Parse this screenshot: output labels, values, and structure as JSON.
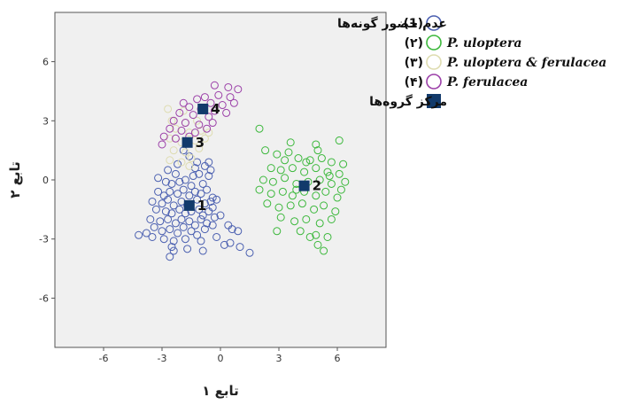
{
  "chart_data": {
    "type": "scatter",
    "title": "",
    "xlabel": "تابع ۱",
    "ylabel": "تابع ۲",
    "xlim": [
      -8.5,
      8.5
    ],
    "ylim": [
      -8.5,
      8.5
    ],
    "x_ticks": [
      {
        "value": -6,
        "label": "-6"
      },
      {
        "value": -3,
        "label": "-3"
      },
      {
        "value": 0,
        "label": "0"
      },
      {
        "value": 3,
        "label": "3"
      },
      {
        "value": 6,
        "label": "6"
      }
    ],
    "y_ticks": [
      {
        "value": 6,
        "label": "6"
      },
      {
        "value": 3,
        "label": "3"
      },
      {
        "value": 0,
        "label": "0"
      },
      {
        "value": -3,
        "label": "-3"
      },
      {
        "value": -6,
        "label": "-6"
      }
    ],
    "grid": false,
    "background": "#f0f0f0",
    "legend_position": "right",
    "legend": [
      {
        "marker": "(1)",
        "label": "عدم حضور گونه‌ها",
        "color": "#4a5fb0",
        "symbol": "circle"
      },
      {
        "marker": "(۲)",
        "label": "P. uloptera",
        "color": "#3cb83c",
        "symbol": "circle"
      },
      {
        "marker": "(۳)",
        "label": "P. uloptera & ferulacea",
        "color": "#dedcb0",
        "symbol": "circle"
      },
      {
        "marker": "(۴)",
        "label": "P. ferulacea",
        "color": "#9b3fa8",
        "symbol": "circle"
      },
      {
        "marker": "",
        "label": "مرکز گروه‌ها",
        "color": "#123a6b",
        "symbol": "square"
      }
    ],
    "series": [
      {
        "name": "عدم حضور گونه‌ها",
        "color": "#4a5fb0",
        "points": [
          [
            -2.8,
            -0.1
          ],
          [
            -2.5,
            -0.2
          ],
          [
            -2.1,
            -0.1
          ],
          [
            -1.8,
            0.0
          ],
          [
            -1.5,
            -0.3
          ],
          [
            -1.1,
            0.3
          ],
          [
            -0.9,
            -0.2
          ],
          [
            -0.6,
            0.2
          ],
          [
            -2.3,
            0.3
          ],
          [
            -1.3,
            0.6
          ],
          [
            -3.2,
            -0.6
          ],
          [
            -2.9,
            -0.8
          ],
          [
            -2.6,
            -0.6
          ],
          [
            -2.2,
            -0.7
          ],
          [
            -1.9,
            -0.5
          ],
          [
            -1.6,
            -0.8
          ],
          [
            -1.3,
            -0.6
          ],
          [
            -1.0,
            -0.7
          ],
          [
            -0.7,
            -0.5
          ],
          [
            -0.4,
            -0.9
          ],
          [
            -3.5,
            -1.1
          ],
          [
            -3.0,
            -1.2
          ],
          [
            -2.7,
            -1.0
          ],
          [
            -2.4,
            -1.3
          ],
          [
            -2.0,
            -1.1
          ],
          [
            -1.7,
            -1.3
          ],
          [
            -1.2,
            -1.0
          ],
          [
            -0.8,
            -1.2
          ],
          [
            -0.5,
            -1.1
          ],
          [
            -0.2,
            -1.0
          ],
          [
            -3.3,
            -1.5
          ],
          [
            -2.8,
            -1.6
          ],
          [
            -2.5,
            -1.7
          ],
          [
            -2.1,
            -1.5
          ],
          [
            -1.8,
            -1.7
          ],
          [
            -1.5,
            -1.6
          ],
          [
            -1.1,
            -1.5
          ],
          [
            -0.9,
            -1.8
          ],
          [
            -0.6,
            -1.6
          ],
          [
            -0.3,
            -1.9
          ],
          [
            -3.6,
            -2.0
          ],
          [
            -3.1,
            -2.1
          ],
          [
            -2.7,
            -2.0
          ],
          [
            -2.3,
            -2.2
          ],
          [
            -2.0,
            -2.0
          ],
          [
            -1.6,
            -2.1
          ],
          [
            -1.3,
            -2.3
          ],
          [
            -1.0,
            -2.0
          ],
          [
            -0.7,
            -2.2
          ],
          [
            0.0,
            -1.8
          ],
          [
            -3.4,
            -2.4
          ],
          [
            -3.0,
            -2.6
          ],
          [
            -2.6,
            -2.5
          ],
          [
            -2.2,
            -2.7
          ],
          [
            -1.9,
            -2.4
          ],
          [
            -1.5,
            -2.6
          ],
          [
            -1.2,
            -2.8
          ],
          [
            -0.8,
            -2.5
          ],
          [
            -0.4,
            -2.3
          ],
          [
            0.4,
            -2.3
          ],
          [
            -4.2,
            -2.8
          ],
          [
            -3.8,
            -2.7
          ],
          [
            -3.5,
            -2.9
          ],
          [
            -2.9,
            -3.0
          ],
          [
            -2.4,
            -3.1
          ],
          [
            -1.8,
            -3.0
          ],
          [
            -1.0,
            -3.1
          ],
          [
            -0.2,
            -2.9
          ],
          [
            0.6,
            -2.5
          ],
          [
            0.9,
            -2.6
          ],
          [
            -2.5,
            -3.4
          ],
          [
            -1.7,
            -3.5
          ],
          [
            -0.9,
            -3.6
          ],
          [
            0.2,
            -3.3
          ],
          [
            0.5,
            -3.2
          ],
          [
            1.0,
            -3.4
          ],
          [
            1.5,
            -3.7
          ],
          [
            -2.6,
            -3.9
          ],
          [
            -2.4,
            -3.6
          ],
          [
            -0.4,
            -1.4
          ],
          [
            -2.2,
            0.8
          ],
          [
            -1.6,
            1.2
          ],
          [
            -1.2,
            0.9
          ],
          [
            -0.8,
            0.7
          ],
          [
            -0.5,
            0.5
          ],
          [
            -2.7,
            0.5
          ],
          [
            -3.2,
            0.1
          ],
          [
            -1.9,
            1.5
          ],
          [
            -0.6,
            0.9
          ],
          [
            -1.4,
            0.2
          ]
        ]
      },
      {
        "name": "P. uloptera",
        "color": "#3cb83c",
        "points": [
          [
            2.0,
            2.6
          ],
          [
            3.6,
            1.9
          ],
          [
            4.9,
            1.8
          ],
          [
            6.1,
            2.0
          ],
          [
            2.3,
            1.5
          ],
          [
            2.9,
            1.3
          ],
          [
            3.3,
            1.0
          ],
          [
            4.0,
            1.1
          ],
          [
            4.6,
            1.0
          ],
          [
            5.2,
            1.1
          ],
          [
            5.7,
            0.9
          ],
          [
            2.6,
            0.6
          ],
          [
            3.1,
            0.5
          ],
          [
            3.7,
            0.6
          ],
          [
            4.3,
            0.4
          ],
          [
            4.9,
            0.6
          ],
          [
            5.5,
            0.4
          ],
          [
            6.1,
            0.3
          ],
          [
            6.4,
            -0.1
          ],
          [
            2.2,
            0.0
          ],
          [
            2.7,
            -0.1
          ],
          [
            3.3,
            0.1
          ],
          [
            3.9,
            -0.2
          ],
          [
            4.5,
            -0.1
          ],
          [
            5.1,
            0.0
          ],
          [
            5.7,
            -0.2
          ],
          [
            6.2,
            -0.5
          ],
          [
            2.0,
            -0.5
          ],
          [
            2.6,
            -0.7
          ],
          [
            3.2,
            -0.6
          ],
          [
            3.7,
            -0.8
          ],
          [
            4.3,
            -0.6
          ],
          [
            4.9,
            -0.8
          ],
          [
            5.4,
            -0.6
          ],
          [
            6.0,
            -0.9
          ],
          [
            2.4,
            -1.2
          ],
          [
            3.0,
            -1.4
          ],
          [
            3.6,
            -1.3
          ],
          [
            4.2,
            -1.2
          ],
          [
            4.8,
            -1.5
          ],
          [
            5.3,
            -1.3
          ],
          [
            5.9,
            -1.6
          ],
          [
            3.1,
            -1.9
          ],
          [
            3.8,
            -2.1
          ],
          [
            4.4,
            -2.0
          ],
          [
            5.1,
            -2.2
          ],
          [
            5.7,
            -2.0
          ],
          [
            4.1,
            -2.6
          ],
          [
            4.9,
            -2.8
          ],
          [
            5.5,
            -2.9
          ],
          [
            5.0,
            -3.3
          ],
          [
            5.3,
            -3.6
          ],
          [
            2.9,
            -2.6
          ],
          [
            6.3,
            0.8
          ],
          [
            4.4,
            0.9
          ],
          [
            3.5,
            1.4
          ],
          [
            4.6,
            -2.9
          ],
          [
            5.6,
            0.2
          ],
          [
            3.9,
            -0.5
          ],
          [
            5.0,
            1.5
          ]
        ]
      },
      {
        "name": "P. uloptera & ferulacea",
        "color": "#dedcb0",
        "points": [
          [
            -2.7,
            3.6
          ],
          [
            -1.9,
            3.5
          ],
          [
            -2.5,
            3.0
          ],
          [
            -1.8,
            2.9
          ],
          [
            -1.2,
            3.0
          ],
          [
            -2.3,
            2.6
          ],
          [
            -1.6,
            2.4
          ],
          [
            -1.0,
            2.5
          ],
          [
            -2.6,
            2.1
          ],
          [
            -2.0,
            1.9
          ],
          [
            -1.3,
            2.0
          ],
          [
            -0.8,
            2.1
          ],
          [
            -2.4,
            1.5
          ],
          [
            -1.8,
            1.4
          ],
          [
            -1.1,
            1.6
          ],
          [
            -2.6,
            1.0
          ],
          [
            -2.0,
            0.9
          ],
          [
            -1.5,
            1.1
          ],
          [
            -0.6,
            2.4
          ],
          [
            -1.6,
            0.7
          ]
        ]
      },
      {
        "name": "P. ferulacea",
        "color": "#9b3fa8",
        "points": [
          [
            -0.3,
            4.8
          ],
          [
            0.4,
            4.7
          ],
          [
            -0.1,
            4.3
          ],
          [
            0.5,
            4.2
          ],
          [
            -0.8,
            4.2
          ],
          [
            -1.2,
            4.1
          ],
          [
            -0.5,
            3.9
          ],
          [
            0.1,
            3.8
          ],
          [
            0.7,
            3.9
          ],
          [
            -1.6,
            3.7
          ],
          [
            -1.0,
            3.6
          ],
          [
            -0.3,
            3.5
          ],
          [
            0.3,
            3.4
          ],
          [
            -2.1,
            3.4
          ],
          [
            -1.4,
            3.3
          ],
          [
            -0.6,
            3.2
          ],
          [
            -2.4,
            3.0
          ],
          [
            -1.8,
            2.9
          ],
          [
            -1.1,
            2.8
          ],
          [
            -0.4,
            2.9
          ],
          [
            -2.6,
            2.6
          ],
          [
            -2.0,
            2.5
          ],
          [
            -1.3,
            2.4
          ],
          [
            -0.7,
            2.6
          ],
          [
            -2.9,
            2.2
          ],
          [
            -2.3,
            2.1
          ],
          [
            -1.6,
            2.2
          ],
          [
            -3.0,
            1.8
          ],
          [
            0.9,
            4.6
          ],
          [
            -1.9,
            3.9
          ]
        ]
      }
    ],
    "centroids": [
      {
        "label": "1",
        "x": -1.6,
        "y": -1.3,
        "color": "#123a6b"
      },
      {
        "label": "2",
        "x": 4.3,
        "y": -0.3,
        "color": "#123a6b"
      },
      {
        "label": "3",
        "x": -1.7,
        "y": 1.9,
        "color": "#123a6b"
      },
      {
        "label": "4",
        "x": -0.9,
        "y": 3.6,
        "color": "#123a6b"
      }
    ]
  }
}
